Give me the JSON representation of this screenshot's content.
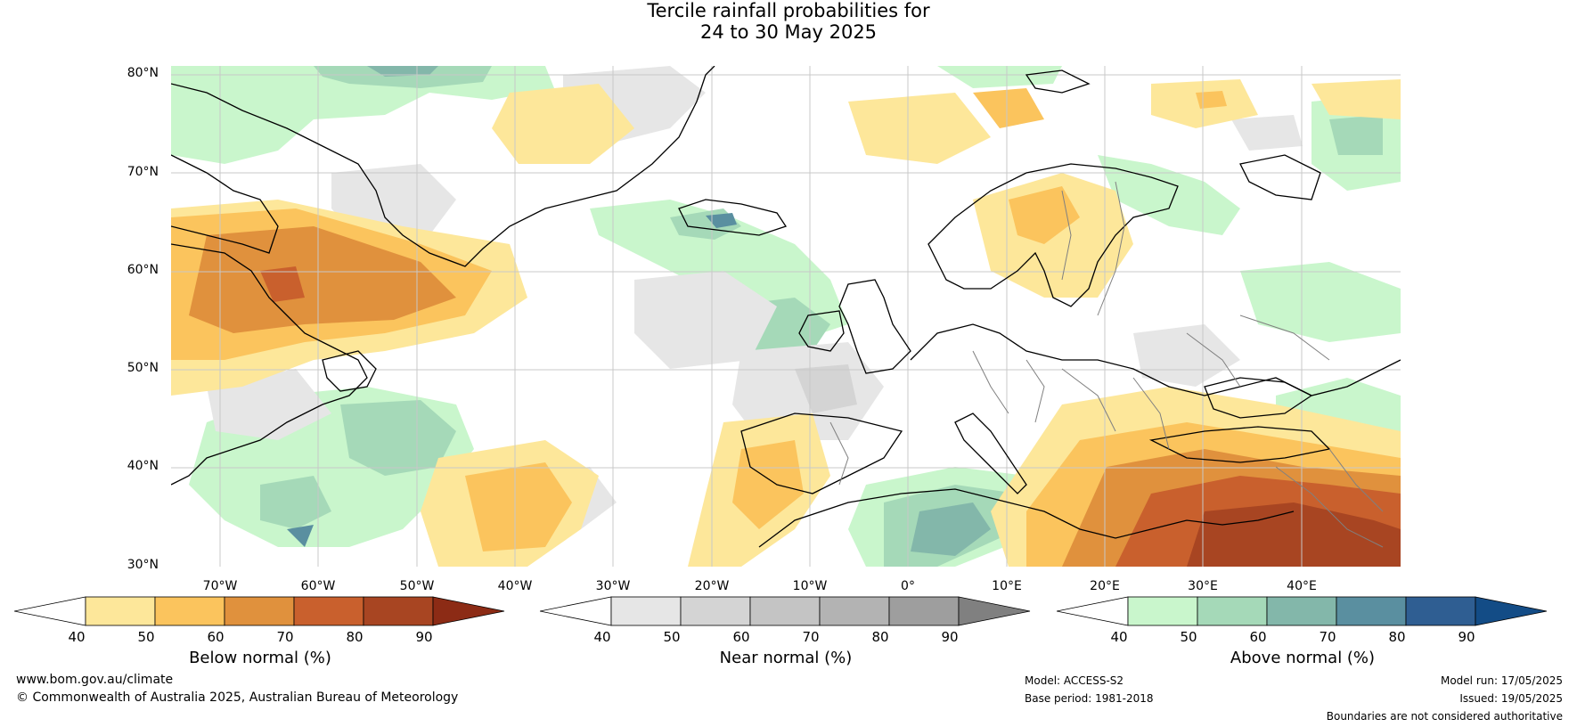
{
  "title": {
    "line1": "Tercile rainfall probabilities for",
    "line2": "24 to 30 May 2025"
  },
  "map": {
    "lat_labels": [
      "80°N",
      "70°N",
      "60°N",
      "50°N",
      "40°N",
      "30°N"
    ],
    "lon_labels": [
      "70°W",
      "60°W",
      "50°W",
      "40°W",
      "30°W",
      "20°W",
      "10°W",
      "0°",
      "10°E",
      "20°E",
      "30°E",
      "40°E"
    ],
    "colors": {
      "land_outline": "#000000",
      "country_border": "#808080",
      "graticule": "#c8c8c8"
    }
  },
  "legend": {
    "below": {
      "title": "Below normal (%)",
      "ticks": [
        "40",
        "50",
        "60",
        "70",
        "80",
        "90"
      ],
      "colors": [
        "#ffffff",
        "#fde79a",
        "#fbc45d",
        "#e0913d",
        "#c9602d",
        "#a84522",
        "#8c2b15"
      ]
    },
    "near": {
      "title": "Near normal (%)",
      "ticks": [
        "40",
        "50",
        "60",
        "70",
        "80",
        "90"
      ],
      "colors": [
        "#ffffff",
        "#e6e6e6",
        "#d4d4d4",
        "#c4c4c4",
        "#b3b3b3",
        "#9e9e9e",
        "#808080"
      ]
    },
    "above": {
      "title": "Above normal (%)",
      "ticks": [
        "40",
        "50",
        "60",
        "70",
        "80",
        "90"
      ],
      "colors": [
        "#ffffff",
        "#c9f6cc",
        "#a5d9b8",
        "#83b7aa",
        "#5a8fa0",
        "#2f5e92",
        "#134c86"
      ]
    }
  },
  "footer": {
    "url": "www.bom.gov.au/climate",
    "copyright": "© Commonwealth of Australia 2025, Australian Bureau of Meteorology",
    "model": "Model: ACCESS-S2",
    "base_period": "Base period: 1981-2018",
    "model_run": "Model run: 17/05/2025",
    "issued": "Issued: 19/05/2025",
    "disclaimer": "Boundaries are not considered authoritative"
  }
}
